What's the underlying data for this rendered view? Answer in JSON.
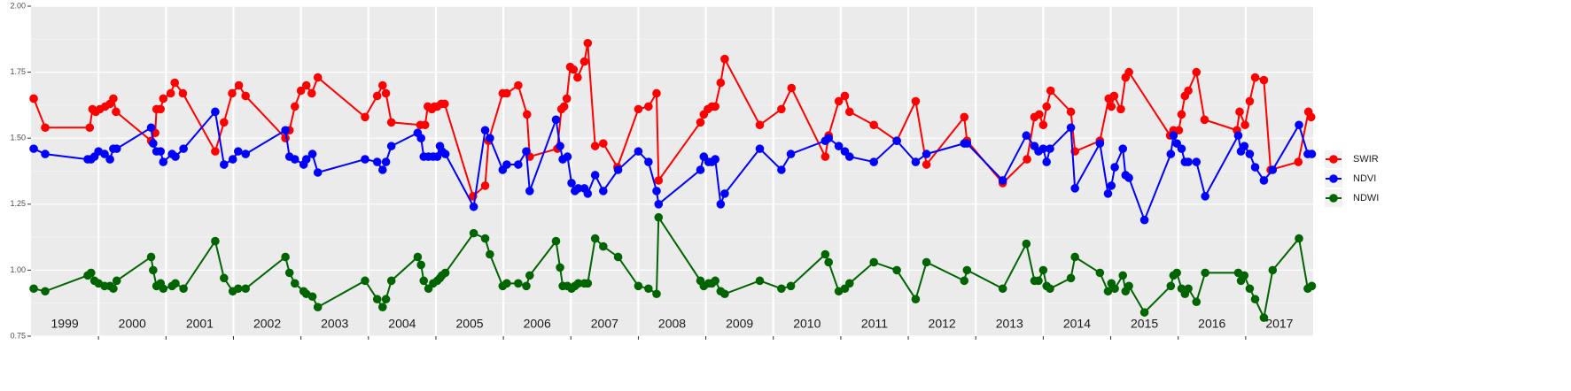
{
  "chart_data": {
    "type": "line",
    "xlim": [
      1999,
      2018
    ],
    "xticks": [
      2000,
      2001,
      2002,
      2003,
      2004,
      2005,
      2006,
      2007,
      2008,
      2009,
      2010,
      2011,
      2012,
      2013,
      2014,
      2015,
      2016,
      2017
    ],
    "ylim": [
      0.75,
      2.0
    ],
    "yticks": [
      0.75,
      {
        "value": 1.0,
        "label": "1.00"
      },
      1.25,
      {
        "value": 1.5,
        "label": "1.50"
      },
      1.75,
      {
        "value": 2.0,
        "label": "2.00"
      }
    ],
    "grid": true,
    "legend": "right",
    "year_labels": [
      "1999",
      "2000",
      "2001",
      "2002",
      "2003",
      "2004",
      "2005",
      "2006",
      "2007",
      "2008",
      "2009",
      "2010",
      "2011",
      "2012",
      "2013",
      "2014",
      "2015",
      "2016",
      "2017"
    ],
    "series": [
      {
        "name": "SWIR",
        "color": "#ff0000",
        "x": [
          1999.04,
          1999.21,
          1999.87,
          1999.91,
          1999.96,
          2000.02,
          2000.1,
          2000.17,
          2000.22,
          2000.26,
          2000.78,
          2000.84,
          2000.86,
          2000.92,
          2000.96,
          2001.07,
          2001.13,
          2001.25,
          2001.73,
          2001.86,
          2001.98,
          2002.08,
          2002.18,
          2002.77,
          2002.83,
          2002.91,
          2003.0,
          2003.08,
          2003.16,
          2003.25,
          2003.95,
          2004.13,
          2004.21,
          2004.26,
          2004.34,
          2004.77,
          2004.84,
          2004.88,
          2004.94,
          2004.98,
          2005.02,
          2005.08,
          2005.13,
          2005.55,
          2005.73,
          2005.78,
          2005.99,
          2006.05,
          2006.22,
          2006.35,
          2006.39,
          2006.8,
          2006.86,
          2006.9,
          2006.94,
          2006.99,
          2007.04,
          2007.1,
          2007.2,
          2007.25,
          2007.36,
          2007.48,
          2007.69,
          2008.0,
          2008.15,
          2008.27,
          2008.3,
          2008.92,
          2008.97,
          2009.03,
          2009.09,
          2009.14,
          2009.22,
          2009.28,
          2009.8,
          2010.12,
          2010.27,
          2010.77,
          2010.82,
          2010.97,
          2011.06,
          2011.13,
          2011.49,
          2011.83,
          2012.11,
          2012.27,
          2012.83,
          2012.87,
          2013.4,
          2013.76,
          2013.87,
          2013.94,
          2014.0,
          2014.05,
          2014.11,
          2014.41,
          2014.47,
          2014.84,
          2014.97,
          2015.01,
          2015.05,
          2015.15,
          2015.22,
          2015.27,
          2015.88,
          2015.93,
          2016.01,
          2016.05,
          2016.1,
          2016.15,
          2016.27,
          2016.39,
          2016.87,
          2016.91,
          2016.99,
          2017.06,
          2017.14,
          2017.27,
          2017.37,
          2017.78,
          2017.93,
          2017.97
        ],
        "values": [
          1.65,
          1.54,
          1.54,
          1.61,
          1.6,
          1.61,
          1.62,
          1.63,
          1.65,
          1.6,
          1.49,
          1.52,
          1.61,
          1.61,
          1.65,
          1.67,
          1.71,
          1.67,
          1.45,
          1.56,
          1.67,
          1.7,
          1.66,
          1.5,
          1.53,
          1.62,
          1.68,
          1.7,
          1.67,
          1.73,
          1.58,
          1.66,
          1.7,
          1.67,
          1.56,
          1.55,
          1.55,
          1.62,
          1.61,
          1.62,
          1.62,
          1.63,
          1.63,
          1.28,
          1.32,
          1.49,
          1.67,
          1.67,
          1.7,
          1.59,
          1.43,
          1.46,
          1.61,
          1.62,
          1.65,
          1.77,
          1.76,
          1.73,
          1.79,
          1.86,
          1.47,
          1.48,
          1.39,
          1.61,
          1.62,
          1.67,
          1.34,
          1.56,
          1.59,
          1.61,
          1.62,
          1.62,
          1.71,
          1.8,
          1.55,
          1.61,
          1.69,
          1.43,
          1.51,
          1.64,
          1.66,
          1.6,
          1.55,
          1.49,
          1.64,
          1.4,
          1.58,
          1.49,
          1.33,
          1.42,
          1.58,
          1.59,
          1.55,
          1.62,
          1.68,
          1.6,
          1.45,
          1.49,
          1.65,
          1.62,
          1.66,
          1.61,
          1.73,
          1.75,
          1.51,
          1.53,
          1.53,
          1.59,
          1.66,
          1.68,
          1.75,
          1.57,
          1.53,
          1.6,
          1.55,
          1.64,
          1.73,
          1.72,
          1.38,
          1.41,
          1.6,
          1.58
        ]
      },
      {
        "name": "NDVI",
        "color": "#0000ff",
        "x": [
          1999.04,
          1999.21,
          1999.84,
          1999.89,
          1999.94,
          2000.0,
          2000.09,
          2000.17,
          2000.22,
          2000.27,
          2000.78,
          2000.81,
          2000.86,
          2000.92,
          2000.96,
          2001.09,
          2001.14,
          2001.26,
          2001.73,
          2001.86,
          2001.99,
          2002.07,
          2002.18,
          2002.77,
          2002.83,
          2002.91,
          2003.04,
          2003.08,
          2003.17,
          2003.25,
          2003.95,
          2004.13,
          2004.21,
          2004.26,
          2004.34,
          2004.73,
          2004.78,
          2004.82,
          2004.89,
          2004.96,
          2005.02,
          2005.06,
          2005.09,
          2005.14,
          2005.56,
          2005.73,
          2005.8,
          2005.99,
          2006.05,
          2006.22,
          2006.34,
          2006.39,
          2006.78,
          2006.84,
          2006.88,
          2006.95,
          2007.01,
          2007.06,
          2007.11,
          2007.2,
          2007.25,
          2007.36,
          2007.48,
          2007.7,
          2008.0,
          2008.15,
          2008.27,
          2008.3,
          2008.92,
          2008.97,
          2009.04,
          2009.09,
          2009.14,
          2009.22,
          2009.28,
          2009.8,
          2010.12,
          2010.26,
          2010.77,
          2010.82,
          2010.97,
          2011.06,
          2011.13,
          2011.49,
          2011.83,
          2012.11,
          2012.27,
          2012.83,
          2012.87,
          2013.4,
          2013.75,
          2013.87,
          2013.93,
          2014.0,
          2014.05,
          2014.1,
          2014.41,
          2014.47,
          2014.84,
          2014.96,
          2015.01,
          2015.06,
          2015.18,
          2015.22,
          2015.27,
          2015.5,
          2015.89,
          2015.93,
          2015.98,
          2016.05,
          2016.1,
          2016.15,
          2016.27,
          2016.4,
          2016.89,
          2016.93,
          2016.98,
          2017.06,
          2017.14,
          2017.27,
          2017.4,
          2017.79,
          2017.92,
          2017.98
        ],
        "values": [
          1.46,
          1.44,
          1.42,
          1.42,
          1.43,
          1.45,
          1.44,
          1.42,
          1.46,
          1.46,
          1.54,
          1.48,
          1.45,
          1.45,
          1.41,
          1.44,
          1.43,
          1.46,
          1.6,
          1.4,
          1.42,
          1.45,
          1.44,
          1.53,
          1.43,
          1.42,
          1.4,
          1.42,
          1.44,
          1.37,
          1.42,
          1.41,
          1.38,
          1.41,
          1.47,
          1.52,
          1.5,
          1.43,
          1.43,
          1.43,
          1.43,
          1.47,
          1.45,
          1.44,
          1.24,
          1.53,
          1.5,
          1.38,
          1.4,
          1.4,
          1.45,
          1.3,
          1.57,
          1.47,
          1.42,
          1.43,
          1.33,
          1.3,
          1.31,
          1.31,
          1.29,
          1.36,
          1.3,
          1.38,
          1.45,
          1.41,
          1.3,
          1.25,
          1.38,
          1.43,
          1.41,
          1.41,
          1.42,
          1.25,
          1.29,
          1.46,
          1.38,
          1.44,
          1.49,
          1.5,
          1.47,
          1.45,
          1.43,
          1.41,
          1.49,
          1.41,
          1.44,
          1.48,
          1.48,
          1.34,
          1.51,
          1.47,
          1.45,
          1.46,
          1.41,
          1.46,
          1.54,
          1.31,
          1.48,
          1.29,
          1.32,
          1.39,
          1.46,
          1.36,
          1.35,
          1.19,
          1.44,
          1.51,
          1.48,
          1.46,
          1.41,
          1.41,
          1.41,
          1.28,
          1.51,
          1.45,
          1.47,
          1.44,
          1.39,
          1.34,
          1.38,
          1.55,
          1.44,
          1.44
        ]
      },
      {
        "name": "NDWI",
        "color": "#006400",
        "x": [
          1999.04,
          1999.21,
          1999.84,
          1999.89,
          1999.94,
          2000.0,
          2000.09,
          2000.17,
          2000.22,
          2000.27,
          2000.78,
          2000.81,
          2000.86,
          2000.92,
          2000.96,
          2001.09,
          2001.14,
          2001.26,
          2001.73,
          2001.86,
          2001.99,
          2002.07,
          2002.18,
          2002.77,
          2002.83,
          2002.91,
          2003.04,
          2003.08,
          2003.17,
          2003.25,
          2003.95,
          2004.13,
          2004.21,
          2004.26,
          2004.34,
          2004.73,
          2004.78,
          2004.82,
          2004.89,
          2004.96,
          2005.02,
          2005.06,
          2005.09,
          2005.14,
          2005.56,
          2005.73,
          2005.8,
          2005.99,
          2006.05,
          2006.22,
          2006.34,
          2006.39,
          2006.78,
          2006.84,
          2006.88,
          2006.95,
          2007.01,
          2007.06,
          2007.11,
          2007.2,
          2007.25,
          2007.36,
          2007.48,
          2007.7,
          2008.0,
          2008.15,
          2008.27,
          2008.3,
          2008.92,
          2008.97,
          2009.04,
          2009.09,
          2009.14,
          2009.22,
          2009.28,
          2009.8,
          2010.12,
          2010.26,
          2010.77,
          2010.82,
          2010.97,
          2011.06,
          2011.13,
          2011.49,
          2011.83,
          2012.11,
          2012.27,
          2012.83,
          2012.87,
          2013.4,
          2013.75,
          2013.87,
          2013.93,
          2014.0,
          2014.05,
          2014.1,
          2014.41,
          2014.47,
          2014.84,
          2014.96,
          2015.01,
          2015.06,
          2015.18,
          2015.22,
          2015.27,
          2015.5,
          2015.89,
          2015.93,
          2015.98,
          2016.05,
          2016.1,
          2016.15,
          2016.27,
          2016.4,
          2016.89,
          2016.93,
          2016.98,
          2017.06,
          2017.14,
          2017.27,
          2017.4,
          2017.79,
          2017.92,
          2017.98
        ],
        "values": [
          0.93,
          0.92,
          0.98,
          0.99,
          0.96,
          0.95,
          0.94,
          0.94,
          0.93,
          0.96,
          1.05,
          1.0,
          0.94,
          0.95,
          0.93,
          0.94,
          0.95,
          0.93,
          1.11,
          0.97,
          0.92,
          0.93,
          0.93,
          1.05,
          0.99,
          0.95,
          0.92,
          0.91,
          0.9,
          0.86,
          0.96,
          0.89,
          0.86,
          0.89,
          0.96,
          1.05,
          1.02,
          0.96,
          0.93,
          0.95,
          0.96,
          0.97,
          0.98,
          0.99,
          1.14,
          1.12,
          1.06,
          0.94,
          0.95,
          0.95,
          0.94,
          0.98,
          1.11,
          1.01,
          0.94,
          0.94,
          0.93,
          0.94,
          0.95,
          0.95,
          0.95,
          1.12,
          1.09,
          1.05,
          0.94,
          0.93,
          0.91,
          1.2,
          0.96,
          0.94,
          0.95,
          0.95,
          0.96,
          0.92,
          0.91,
          0.96,
          0.93,
          0.94,
          1.06,
          1.03,
          0.92,
          0.93,
          0.95,
          1.03,
          1.0,
          0.89,
          1.03,
          0.96,
          1.0,
          0.93,
          1.1,
          0.96,
          0.96,
          1.0,
          0.94,
          0.93,
          0.97,
          1.05,
          0.99,
          0.92,
          0.95,
          0.93,
          0.98,
          0.92,
          0.94,
          0.84,
          0.94,
          0.98,
          0.99,
          0.93,
          0.91,
          0.93,
          0.88,
          0.99,
          0.99,
          0.96,
          0.98,
          0.93,
          0.89,
          0.82,
          1.0,
          1.12,
          0.93,
          0.94
        ]
      }
    ]
  }
}
